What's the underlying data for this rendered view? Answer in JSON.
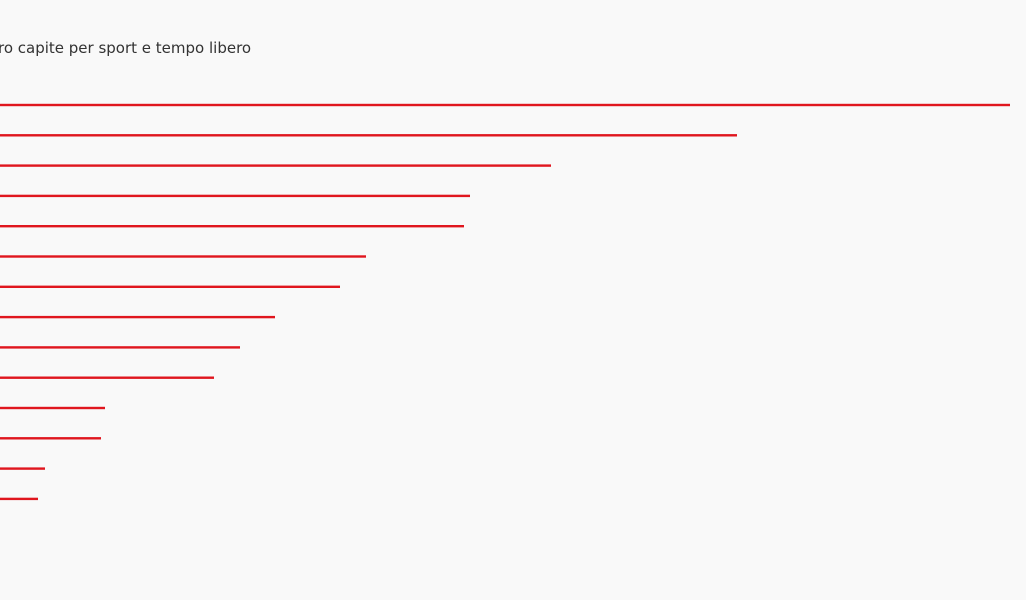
{
  "chart_data": {
    "type": "bar",
    "orientation": "horizontal",
    "title": "ro capite per sport e tempo libero",
    "values": [
      1010,
      737,
      551,
      470,
      464,
      366,
      340,
      275,
      240,
      214,
      105,
      101,
      45,
      38
    ],
    "color": "#e0161e",
    "xlim": [
      0,
      1026
    ]
  }
}
